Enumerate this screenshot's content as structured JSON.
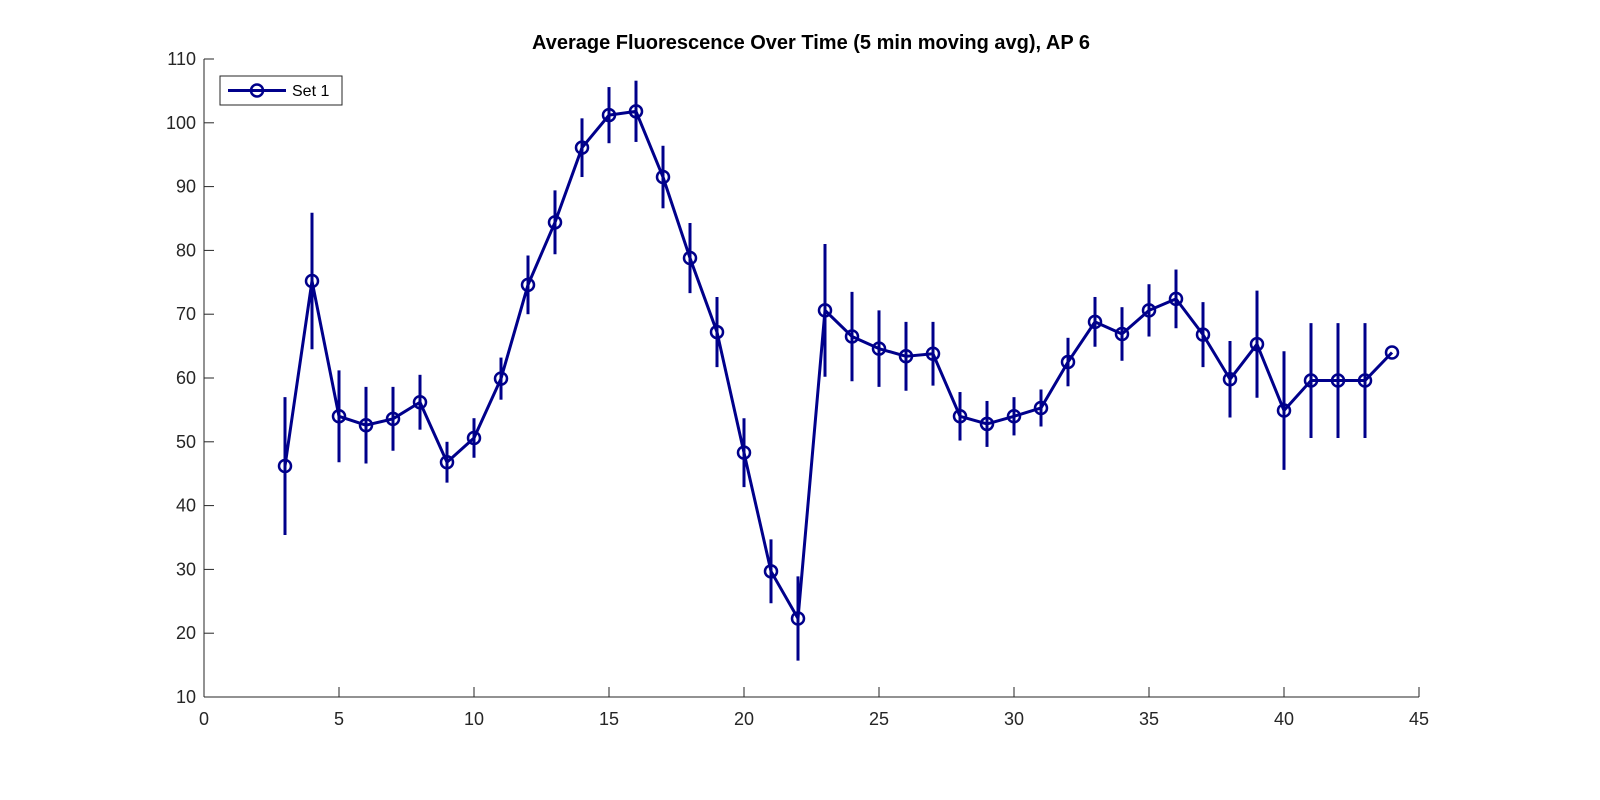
{
  "chart_data": {
    "type": "line",
    "title": "Average Fluorescence Over Time (5 min moving avg), AP 6",
    "xlabel": "",
    "ylabel": "",
    "xlim": [
      0,
      45
    ],
    "ylim": [
      10,
      110
    ],
    "xticks": [
      0,
      5,
      10,
      15,
      20,
      25,
      30,
      35,
      40,
      45
    ],
    "yticks": [
      10,
      20,
      30,
      40,
      50,
      60,
      70,
      80,
      90,
      100,
      110
    ],
    "grid": false,
    "legend_position": "top-left",
    "series": [
      {
        "name": "Set 1",
        "color": "#00008B",
        "marker": "circle",
        "x": [
          3,
          4,
          5,
          6,
          7,
          8,
          9,
          10,
          11,
          12,
          13,
          14,
          15,
          16,
          17,
          18,
          19,
          20,
          21,
          22,
          23,
          24,
          25,
          26,
          27,
          28,
          29,
          30,
          31,
          32,
          33,
          34,
          35,
          36,
          37,
          38,
          39,
          40,
          41,
          42,
          43,
          44
        ],
        "values": [
          46.2,
          75.2,
          54.0,
          52.6,
          53.6,
          56.2,
          46.8,
          50.6,
          59.9,
          74.6,
          84.4,
          96.1,
          101.2,
          101.8,
          91.5,
          78.8,
          67.2,
          48.3,
          29.7,
          22.3,
          70.6,
          66.5,
          64.6,
          63.4,
          63.8,
          54.0,
          52.8,
          54.0,
          55.3,
          62.5,
          68.8,
          66.9,
          70.6,
          72.4,
          66.8,
          59.8,
          65.3,
          54.9,
          59.6,
          59.6,
          59.6,
          64.0
        ],
        "error": [
          10.8,
          10.7,
          7.2,
          6.0,
          5.0,
          4.3,
          3.2,
          3.1,
          3.3,
          4.6,
          5.0,
          4.6,
          4.4,
          4.8,
          4.9,
          5.5,
          5.5,
          5.4,
          5.0,
          6.6,
          10.4,
          7.0,
          6.0,
          5.4,
          5.0,
          3.8,
          3.6,
          3.0,
          2.9,
          3.8,
          3.9,
          4.2,
          4.1,
          4.6,
          5.1,
          6.0,
          8.4,
          9.3,
          9.0,
          9.0,
          9.0,
          0
        ]
      }
    ]
  }
}
